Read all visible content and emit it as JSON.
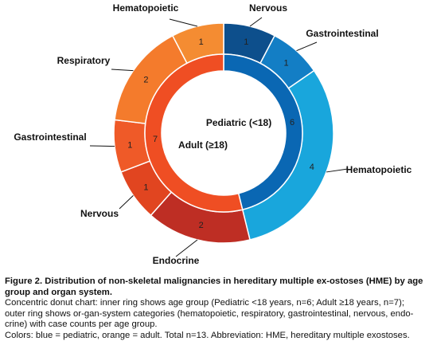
{
  "chart_data": {
    "type": "pie",
    "subtype": "nested-donut",
    "inner_ring": [
      {
        "label": "Pediatric (<18)",
        "value": 6,
        "color": "#0a67b3"
      },
      {
        "label": "Adult (≥18)",
        "value": 7,
        "color": "#ef4e23"
      }
    ],
    "outer_ring": [
      {
        "label": "Nervous",
        "value": 1,
        "group": "Pediatric (<18)",
        "color": "#0d4f8c"
      },
      {
        "label": "Gastrointestinal",
        "value": 1,
        "group": "Pediatric (<18)",
        "color": "#137ec5"
      },
      {
        "label": "Hematopoietic",
        "value": 4,
        "group": "Pediatric (<18)",
        "color": "#19a6dc"
      },
      {
        "label": "Endocrine",
        "value": 2,
        "group": "Adult (≥18)",
        "color": "#be2e24"
      },
      {
        "label": "Nervous",
        "value": 1,
        "group": "Adult (≥18)",
        "color": "#e14520"
      },
      {
        "label": "Gastrointestinal",
        "value": 1,
        "group": "Adult (≥18)",
        "color": "#ef5a28"
      },
      {
        "label": "Respiratory",
        "value": 2,
        "group": "Adult (≥18)",
        "color": "#f47b2c"
      },
      {
        "label": "Hematopoietic",
        "value": 1,
        "group": "Adult (≥18)",
        "color": "#f48c32"
      }
    ]
  },
  "caption": {
    "title": "Figure 2. Distribution of non-skeletal malignancies in hereditary multiple ex-ostoses (HME) by age group and organ system.",
    "line1": "Concentric donut chart: inner ring shows age group (Pediatric <18 years, n=6; Adult ≥18 years, n=7); outer ring shows or-gan-system categories (hematopoietic, respiratory, gastrointestinal, nervous, endo-crine) with case counts per age group.",
    "line2": "Colors: blue = pediatric, orange = adult. Total n=13. Abbreviation: HME, hereditary multiple exostoses."
  }
}
